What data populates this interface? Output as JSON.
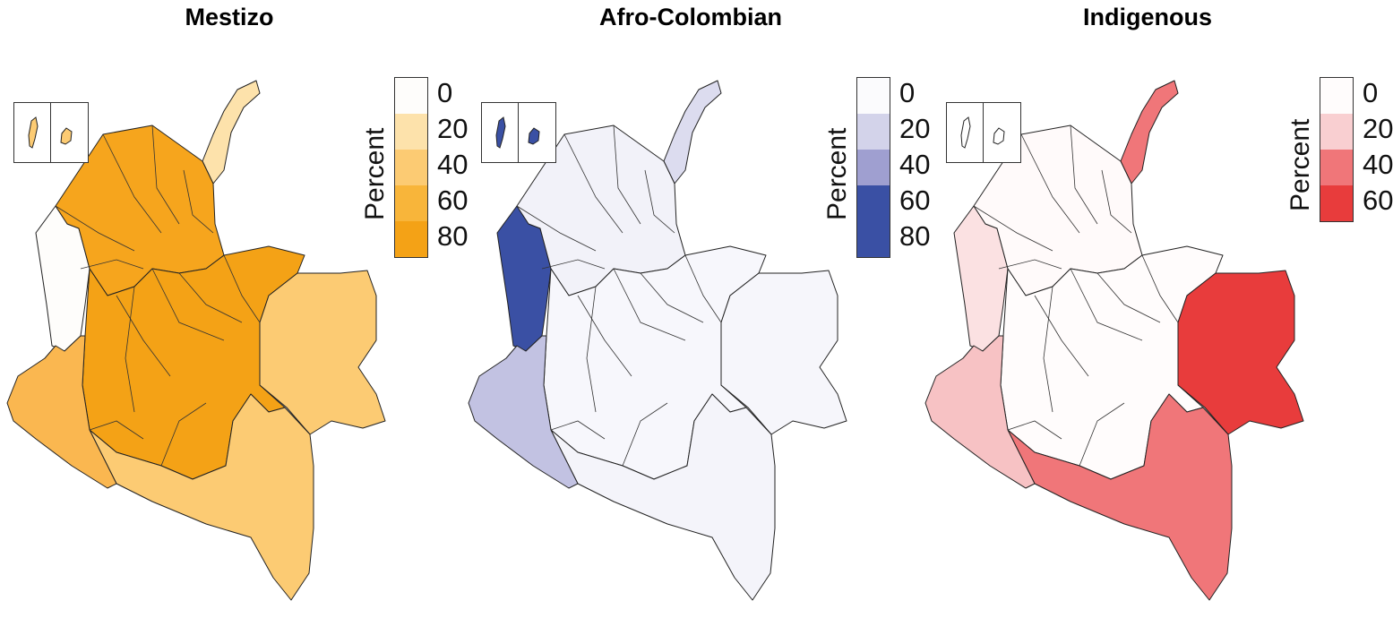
{
  "panels": [
    {
      "title": "Mestizo",
      "legend_title": "Percent",
      "legend": [
        {
          "label": "0",
          "color": "#fefdfb"
        },
        {
          "label": "20",
          "color": "#fde2ab"
        },
        {
          "label": "40",
          "color": "#fccb73"
        },
        {
          "label": "60",
          "color": "#f8b53a"
        },
        {
          "label": "80",
          "color": "#f4a216"
        }
      ],
      "regions": {
        "west_coast": "#fefdfb",
        "north_tip": "#fde2ab",
        "east_regions": "#fccb73",
        "south_regions": "#fccb73",
        "southwest": "#fab750",
        "core": "#f6a51d",
        "central": "#f4a216",
        "islands": "#fccb73"
      }
    },
    {
      "title": "Afro-Colombian",
      "legend_title": "Percent",
      "legend": [
        {
          "label": "0",
          "color": "#fbfbfd"
        },
        {
          "label": "20",
          "color": "#d3d3ea"
        },
        {
          "label": "40",
          "color": "#9f9fd0"
        },
        {
          "label": "60",
          "color": "#3a50a4"
        },
        {
          "label": "80",
          "color": "#3a50a4"
        }
      ],
      "regions": {
        "west_coast": "#3a50a4",
        "north_tip": "#dcdcef",
        "east_regions": "#f6f6fb",
        "south_regions": "#f4f4fa",
        "southwest": "#c2c2e2",
        "core": "#f2f2f9",
        "central": "#f7f7fc",
        "islands": "#3a50a4"
      }
    },
    {
      "title": "Indigenous",
      "legend_title": "Percent",
      "legend": [
        {
          "label": "0",
          "color": "#fffcfc"
        },
        {
          "label": "20",
          "color": "#f9cfd1"
        },
        {
          "label": "40",
          "color": "#f07679"
        },
        {
          "label": "60",
          "color": "#e83c3c"
        }
      ],
      "regions": {
        "west_coast": "#fbe1e2",
        "north_tip": "#f07679",
        "east_regions": "#e83c3c",
        "south_regions": "#f07679",
        "southwest": "#f7c2c4",
        "core": "#fffafa",
        "central": "#fffcfc",
        "islands": "#ffffff"
      }
    }
  ]
}
